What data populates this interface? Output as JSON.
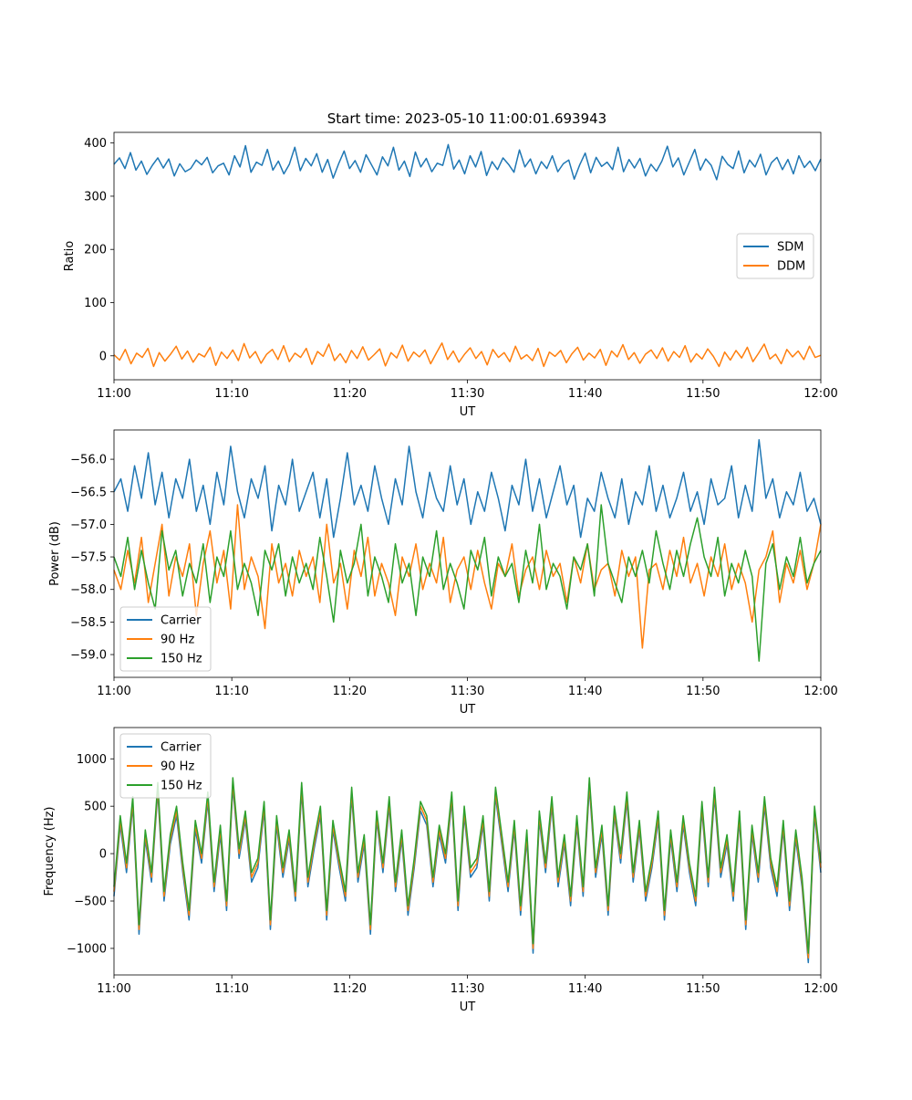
{
  "figure_title": "Start time: 2023-05-10 11:00:01.693943",
  "chart_data": [
    {
      "type": "line",
      "title": "Start time: 2023-05-10 11:00:01.693943",
      "xlabel": "UT",
      "ylabel": "Ratio",
      "xlim": [
        "11:00",
        "12:00"
      ],
      "ylim": [
        -45,
        420
      ],
      "x_ticks": [
        "11:00",
        "11:10",
        "11:20",
        "11:30",
        "11:40",
        "11:50",
        "12:00"
      ],
      "y_ticks": [
        0,
        100,
        200,
        300,
        400
      ],
      "legend_position": "center-right",
      "grid": false,
      "series": [
        {
          "name": "SDM",
          "color": "#1f77b4",
          "values": [
            360,
            372,
            352,
            382,
            349,
            366,
            341,
            358,
            372,
            353,
            370,
            338,
            361,
            346,
            352,
            368,
            359,
            373,
            344,
            357,
            362,
            340,
            376,
            355,
            395,
            345,
            364,
            358,
            388,
            349,
            366,
            342,
            360,
            392,
            348,
            371,
            357,
            380,
            345,
            369,
            334,
            361,
            385,
            352,
            367,
            345,
            378,
            359,
            340,
            374,
            357,
            392,
            349,
            366,
            337,
            383,
            355,
            371,
            346,
            362,
            358,
            397,
            351,
            368,
            342,
            376,
            355,
            384,
            339,
            365,
            350,
            372,
            360,
            345,
            387,
            355,
            370,
            342,
            365,
            352,
            376,
            346,
            361,
            368,
            332,
            359,
            381,
            344,
            373,
            356,
            364,
            350,
            392,
            346,
            369,
            353,
            371,
            338,
            360,
            347,
            366,
            394,
            355,
            372,
            340,
            364,
            388,
            349,
            370,
            358,
            331,
            375,
            360,
            352,
            385,
            344,
            368,
            355,
            379,
            340,
            363,
            373,
            350,
            369,
            342,
            376,
            354,
            366,
            348,
            370
          ]
        },
        {
          "name": "DDM",
          "color": "#ff7f0e",
          "values": [
            2,
            -8,
            12,
            -15,
            5,
            -3,
            14,
            -20,
            6,
            -10,
            3,
            18,
            -6,
            9,
            -12,
            4,
            -2,
            16,
            -18,
            7,
            -5,
            11,
            -9,
            23,
            -4,
            8,
            -14,
            3,
            12,
            -7,
            19,
            -11,
            5,
            -3,
            14,
            -16,
            8,
            -1,
            22,
            -9,
            4,
            -13,
            10,
            -5,
            17,
            -8,
            2,
            13,
            -19,
            6,
            -4,
            20,
            -10,
            7,
            -2,
            11,
            -15,
            5,
            24,
            -7,
            9,
            -12,
            3,
            15,
            -5,
            8,
            -17,
            12,
            -3,
            6,
            -11,
            18,
            -6,
            2,
            -9,
            14,
            -20,
            7,
            -1,
            10,
            -13,
            4,
            16,
            -8,
            5,
            -4,
            12,
            -18,
            9,
            -2,
            21,
            -7,
            6,
            -14,
            3,
            11,
            -5,
            15,
            -10,
            8,
            -3,
            19,
            -12,
            4,
            -6,
            13,
            -1,
            -20,
            7,
            -8,
            10,
            -4,
            16,
            -11,
            5,
            22,
            -6,
            3,
            -15,
            12,
            -2,
            9,
            -7,
            18,
            -3,
            1
          ]
        }
      ]
    },
    {
      "type": "line",
      "title": "",
      "xlabel": "UT",
      "ylabel": "Power (dB)",
      "xlim": [
        "11:00",
        "12:00"
      ],
      "ylim": [
        -59.35,
        -55.55
      ],
      "x_ticks": [
        "11:00",
        "11:10",
        "11:20",
        "11:30",
        "11:40",
        "11:50",
        "12:00"
      ],
      "y_ticks": [
        -59.0,
        -58.5,
        -58.0,
        -57.5,
        -57.0,
        -56.5,
        -56.0
      ],
      "legend_position": "lower-left",
      "grid": false,
      "series": [
        {
          "name": "Carrier",
          "color": "#1f77b4",
          "values": [
            -56.5,
            -56.3,
            -56.8,
            -56.1,
            -56.6,
            -55.9,
            -56.7,
            -56.2,
            -56.9,
            -56.3,
            -56.6,
            -56.0,
            -56.8,
            -56.4,
            -57.0,
            -56.2,
            -56.7,
            -55.8,
            -56.5,
            -56.9,
            -56.3,
            -56.6,
            -56.1,
            -57.1,
            -56.4,
            -56.7,
            -56.0,
            -56.8,
            -56.5,
            -56.2,
            -56.9,
            -56.3,
            -57.2,
            -56.6,
            -55.9,
            -56.7,
            -56.4,
            -56.8,
            -56.1,
            -56.6,
            -57.0,
            -56.3,
            -56.7,
            -55.8,
            -56.5,
            -56.9,
            -56.2,
            -56.6,
            -56.8,
            -56.1,
            -56.7,
            -56.3,
            -57.0,
            -56.5,
            -56.8,
            -56.2,
            -56.6,
            -57.1,
            -56.4,
            -56.7,
            -56.0,
            -56.8,
            -56.3,
            -56.9,
            -56.5,
            -56.1,
            -56.7,
            -56.4,
            -57.2,
            -56.6,
            -56.8,
            -56.2,
            -56.6,
            -56.9,
            -56.3,
            -57.0,
            -56.5,
            -56.7,
            -56.1,
            -56.8,
            -56.4,
            -56.9,
            -56.6,
            -56.2,
            -56.8,
            -56.5,
            -57.0,
            -56.3,
            -56.7,
            -56.6,
            -56.1,
            -56.9,
            -56.4,
            -56.8,
            -55.7,
            -56.6,
            -56.3,
            -56.9,
            -56.5,
            -56.7,
            -56.2,
            -56.8,
            -56.6,
            -57.0
          ]
        },
        {
          "name": "90 Hz",
          "color": "#ff7f0e",
          "values": [
            -57.7,
            -58.0,
            -57.4,
            -57.9,
            -57.2,
            -58.2,
            -57.6,
            -57.0,
            -58.1,
            -57.5,
            -57.8,
            -57.3,
            -58.4,
            -57.6,
            -57.1,
            -57.9,
            -57.4,
            -58.3,
            -56.7,
            -58.0,
            -57.5,
            -57.8,
            -58.6,
            -57.3,
            -57.9,
            -57.6,
            -58.1,
            -57.4,
            -57.8,
            -57.5,
            -58.2,
            -57.0,
            -57.9,
            -57.6,
            -58.3,
            -57.4,
            -57.8,
            -57.2,
            -58.1,
            -57.6,
            -57.9,
            -58.4,
            -57.5,
            -57.8,
            -57.3,
            -58.0,
            -57.6,
            -57.9,
            -57.2,
            -58.2,
            -57.7,
            -57.5,
            -58.0,
            -57.4,
            -57.9,
            -58.3,
            -57.6,
            -57.8,
            -57.3,
            -58.1,
            -57.7,
            -57.5,
            -58.0,
            -57.4,
            -57.8,
            -57.6,
            -58.2,
            -57.5,
            -57.9,
            -57.3,
            -58.0,
            -57.7,
            -57.6,
            -58.1,
            -57.4,
            -57.8,
            -57.5,
            -58.9,
            -57.7,
            -57.6,
            -58.0,
            -57.4,
            -57.8,
            -57.2,
            -57.9,
            -57.6,
            -58.1,
            -57.5,
            -57.8,
            -57.3,
            -58.0,
            -57.6,
            -57.9,
            -58.5,
            -57.7,
            -57.5,
            -57.1,
            -58.2,
            -57.6,
            -57.9,
            -57.4,
            -58.0,
            -57.6,
            -57.0
          ]
        },
        {
          "name": "150 Hz",
          "color": "#2ca02c",
          "values": [
            -57.5,
            -57.8,
            -57.2,
            -58.0,
            -57.4,
            -57.9,
            -58.3,
            -57.1,
            -57.7,
            -57.4,
            -58.1,
            -57.6,
            -57.9,
            -57.3,
            -58.2,
            -57.5,
            -57.8,
            -57.1,
            -58.0,
            -57.6,
            -57.9,
            -58.4,
            -57.4,
            -57.7,
            -57.3,
            -58.1,
            -57.5,
            -57.9,
            -57.6,
            -58.0,
            -57.2,
            -57.8,
            -58.5,
            -57.4,
            -57.9,
            -57.6,
            -57.0,
            -58.1,
            -57.5,
            -57.8,
            -58.2,
            -57.3,
            -57.9,
            -57.6,
            -58.4,
            -57.5,
            -57.8,
            -57.1,
            -58.0,
            -57.6,
            -57.9,
            -58.3,
            -57.4,
            -57.7,
            -57.2,
            -58.1,
            -57.5,
            -57.8,
            -57.6,
            -58.2,
            -57.4,
            -57.9,
            -57.0,
            -58.0,
            -57.6,
            -57.8,
            -58.3,
            -57.5,
            -57.7,
            -57.3,
            -58.1,
            -56.7,
            -57.6,
            -57.9,
            -58.2,
            -57.5,
            -57.8,
            -57.4,
            -57.9,
            -57.1,
            -57.6,
            -58.0,
            -57.4,
            -57.8,
            -57.3,
            -56.9,
            -57.5,
            -57.8,
            -57.2,
            -58.1,
            -57.6,
            -57.9,
            -57.4,
            -57.8,
            -59.1,
            -57.6,
            -57.3,
            -58.0,
            -57.5,
            -57.8,
            -57.2,
            -57.9,
            -57.6,
            -57.4
          ]
        }
      ]
    },
    {
      "type": "line",
      "title": "",
      "xlabel": "UT",
      "ylabel": "Frequency (Hz)",
      "xlim": [
        "11:00",
        "12:00"
      ],
      "ylim": [
        -1280,
        1330
      ],
      "x_ticks": [
        "11:00",
        "11:10",
        "11:20",
        "11:30",
        "11:40",
        "11:50",
        "12:00"
      ],
      "y_ticks": [
        -1000,
        -500,
        0,
        500,
        1000
      ],
      "legend_position": "upper-left",
      "grid": false,
      "series": [
        {
          "name": "Carrier",
          "color": "#1f77b4",
          "values": [
            -450,
            300,
            -200,
            500,
            -850,
            150,
            -300,
            650,
            -500,
            100,
            400,
            -200,
            -700,
            250,
            -100,
            550,
            -400,
            200,
            -600,
            700,
            -50,
            350,
            -300,
            -150,
            450,
            -800,
            300,
            -250,
            150,
            -500,
            650,
            -350,
            50,
            400,
            -700,
            250,
            -150,
            -500,
            600,
            -300,
            100,
            -850,
            350,
            -200,
            500,
            -400,
            150,
            -650,
            -150,
            450,
            300,
            -350,
            200,
            -100,
            550,
            -600,
            400,
            -250,
            -150,
            300,
            -500,
            600,
            100,
            -400,
            250,
            -650,
            150,
            -1050,
            350,
            -200,
            500,
            -350,
            100,
            -550,
            300,
            -450,
            700,
            -250,
            200,
            -650,
            400,
            -100,
            550,
            -300,
            250,
            -500,
            -150,
            350,
            -700,
            150,
            -400,
            300,
            -200,
            -550,
            450,
            -350,
            600,
            -250,
            100,
            -500,
            350,
            -800,
            200,
            -300,
            500,
            -150,
            -450,
            250,
            -600,
            150,
            -350,
            -1150,
            400,
            -200
          ]
        },
        {
          "name": "90 Hz",
          "color": "#ff7f0e",
          "values": [
            -400,
            350,
            -150,
            550,
            -800,
            200,
            -250,
            700,
            -450,
            150,
            450,
            -150,
            -650,
            300,
            -50,
            600,
            -350,
            250,
            -550,
            750,
            0,
            400,
            -250,
            -100,
            500,
            -750,
            350,
            -200,
            200,
            -450,
            700,
            -300,
            100,
            450,
            -650,
            300,
            -100,
            -450,
            650,
            -250,
            150,
            -800,
            400,
            -150,
            550,
            -350,
            200,
            -600,
            -100,
            500,
            350,
            -300,
            250,
            -50,
            600,
            -550,
            450,
            -200,
            -100,
            350,
            -450,
            650,
            150,
            -350,
            300,
            -600,
            200,
            -1000,
            400,
            -150,
            550,
            -300,
            150,
            -500,
            350,
            -400,
            750,
            -200,
            250,
            -600,
            450,
            -50,
            600,
            -250,
            300,
            -450,
            -100,
            400,
            -650,
            200,
            -350,
            350,
            -150,
            -500,
            500,
            -300,
            650,
            -200,
            150,
            -450,
            400,
            -750,
            250,
            -250,
            550,
            -100,
            -400,
            300,
            -550,
            200,
            -300,
            -1100,
            450,
            -150
          ]
        },
        {
          "name": "150 Hz",
          "color": "#2ca02c",
          "values": [
            -350,
            400,
            -100,
            600,
            -750,
            250,
            -200,
            750,
            -400,
            200,
            500,
            -100,
            -600,
            350,
            0,
            650,
            -300,
            300,
            -500,
            800,
            50,
            450,
            -200,
            -50,
            550,
            -700,
            400,
            -150,
            250,
            -400,
            750,
            -250,
            150,
            500,
            -600,
            350,
            -50,
            -400,
            700,
            -200,
            200,
            -750,
            450,
            -100,
            600,
            -300,
            250,
            -550,
            -50,
            550,
            400,
            -250,
            300,
            0,
            650,
            -500,
            500,
            -150,
            -50,
            400,
            -400,
            700,
            200,
            -300,
            350,
            -550,
            250,
            -950,
            450,
            -100,
            600,
            -250,
            200,
            -450,
            400,
            -350,
            800,
            -150,
            300,
            -550,
            500,
            0,
            650,
            -200,
            350,
            -400,
            -50,
            450,
            -600,
            250,
            -300,
            400,
            -100,
            -450,
            550,
            -250,
            700,
            -150,
            200,
            -400,
            450,
            -700,
            300,
            -200,
            600,
            -50,
            -350,
            350,
            -500,
            250,
            -250,
            -1050,
            500,
            -100
          ]
        }
      ]
    }
  ]
}
